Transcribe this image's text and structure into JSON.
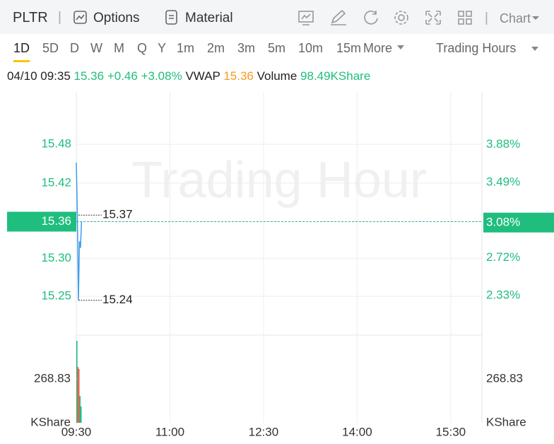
{
  "toolbar": {
    "symbol": "PLTR",
    "options": "Options",
    "material": "Material",
    "chart_menu": "Chart"
  },
  "periods": [
    "1D",
    "5D",
    "D",
    "W",
    "M",
    "Q",
    "Y",
    "1m",
    "2m",
    "3m",
    "5m",
    "10m",
    "15m"
  ],
  "more": "More",
  "session": "Trading Hours",
  "quote": {
    "datetime": "04/10 09:35",
    "price": "15.36",
    "change": "+0.46",
    "change_pct": "+3.08%",
    "vwap_label": "VWAP",
    "vwap": "15.36",
    "volume_label": "Volume",
    "volume": "98.49KShare"
  },
  "watermark": "Trading Hour",
  "chart_data": {
    "type": "line",
    "x": [
      "09:30",
      "09:31",
      "09:32",
      "09:33",
      "09:34",
      "09:35"
    ],
    "series": [
      {
        "color": "#3d9be9",
        "values": [
          15.45,
          15.37,
          15.24,
          15.33,
          15.32,
          15.36
        ]
      }
    ],
    "xlim": [
      "09:30",
      "16:00"
    ],
    "xticks": [
      "09:30",
      "11:00",
      "12:30",
      "14:00",
      "15:30"
    ],
    "ylim": [
      15.189,
      15.558
    ],
    "yticks": [
      {
        "value": 15.478,
        "label": "15.48"
      },
      {
        "value": 15.419,
        "label": "15.42"
      },
      {
        "value": 15.36,
        "label": "15.36"
      },
      {
        "value": 15.304,
        "label": "15.30"
      },
      {
        "value": 15.246,
        "label": "15.25"
      }
    ],
    "y2lim": [
      1.94,
      4.42
    ],
    "y2ticks": [
      {
        "value": 3.88,
        "label": "3.88%"
      },
      {
        "value": 3.49,
        "label": "3.49%"
      },
      {
        "value": 3.08,
        "label": "3.08%"
      },
      {
        "value": 2.72,
        "label": "2.72%"
      },
      {
        "value": 2.33,
        "label": "2.33%"
      }
    ],
    "current_tick": 2,
    "current_color": "#1fbe7e",
    "annotations": [
      {
        "value": 15.37,
        "label": "15.37"
      },
      {
        "value": 15.24,
        "label": "15.24"
      }
    ],
    "volume": {
      "values": [
        503,
        342,
        330,
        165,
        100
      ],
      "colors": [
        "#1fbe7e",
        "#f0614e",
        "#f0614e",
        "#1fbe7e",
        "#1fbe7e"
      ],
      "ylim": [
        0,
        537.66
      ],
      "yticks": [
        268.83
      ],
      "unit": "KShare"
    },
    "grid": true
  }
}
